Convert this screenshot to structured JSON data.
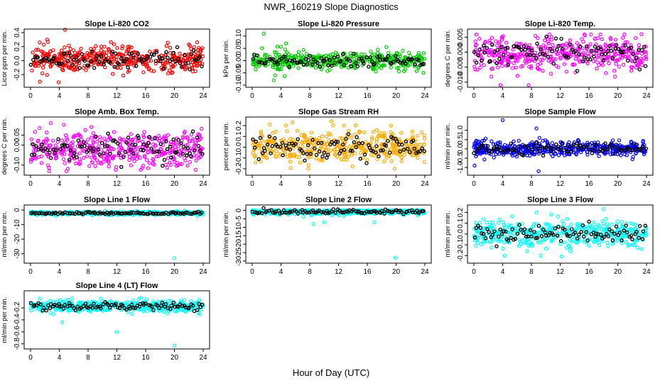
{
  "page": {
    "title": "NWR_160219  Slope Diagnostics",
    "xlabel": "Hour of Day (UTC)"
  },
  "chart_data": [
    {
      "type": "scatter",
      "title": "Slope Li-820 CO2",
      "ylabel": "Licor ppm per min.",
      "xlim": [
        0,
        24
      ],
      "xticks": [
        0,
        4,
        8,
        12,
        16,
        20,
        24
      ],
      "ylim": [
        -0.35,
        0.42
      ],
      "yticks": [
        -0.2,
        0.0,
        0.2,
        0.4
      ],
      "ytick_labels": [
        "-0.2",
        "0.0",
        "0.2",
        "0.4"
      ],
      "color": "#ff0000",
      "center": 0.02,
      "spread": 0.09,
      "outliers_high": [
        [
          2.3,
          0.3
        ],
        [
          4.8,
          0.44
        ]
      ],
      "outliers_low": [
        [
          1.3,
          -0.3
        ],
        [
          3.9,
          -0.31
        ]
      ]
    },
    {
      "type": "scatter",
      "title": "Slope Li-820 Pressure",
      "ylabel": "kPa per min.",
      "xlim": [
        0,
        24
      ],
      "xticks": [
        0,
        4,
        8,
        12,
        16,
        20,
        24
      ],
      "ylim": [
        -0.1,
        0.12
      ],
      "yticks": [
        -0.1,
        -0.05,
        0.0,
        0.05,
        0.1
      ],
      "ytick_labels": [
        "-0.10",
        "-0.05",
        "0.00",
        "0.05",
        "0.10"
      ],
      "color": "#00cc00",
      "center": 0.0,
      "spread": 0.018,
      "outliers_high": [
        [
          1.6,
          0.11
        ],
        [
          4.7,
          0.07
        ]
      ],
      "outliers_low": [
        [
          3.0,
          -0.08
        ],
        [
          23.8,
          -0.05
        ]
      ]
    },
    {
      "type": "scatter",
      "title": "Slope Li-820 Temp.",
      "ylabel": "degrees C per min.",
      "xlim": [
        0,
        24
      ],
      "xticks": [
        0,
        4,
        8,
        12,
        16,
        20,
        24
      ],
      "ylim": [
        -0.011,
        0.007
      ],
      "yticks": [
        -0.01,
        -0.005,
        0.0,
        0.005
      ],
      "ytick_labels": [
        "-0.010",
        "-0.005",
        "0.000",
        "0.005"
      ],
      "color": "#ff00ff",
      "center": -0.0005,
      "spread": 0.0028,
      "outliers_high": [
        [
          23.3,
          0.006
        ]
      ],
      "outliers_low": [
        [
          3.7,
          -0.011
        ],
        [
          7.6,
          -0.011
        ]
      ]
    },
    {
      "type": "scatter",
      "title": "Slope Amb. Box Temp.",
      "ylabel": "degrees C per min.",
      "xlim": [
        0,
        24
      ],
      "xticks": [
        0,
        4,
        8,
        12,
        16,
        20,
        24
      ],
      "ylim": [
        -0.14,
        0.13
      ],
      "yticks": [
        -0.1,
        0.0,
        0.05
      ],
      "ytick_labels": [
        "-0.10",
        "0.00",
        "0.05"
      ],
      "color": "#ff00ff",
      "center": -0.02,
      "spread": 0.045,
      "outliers_high": [
        [
          2.8,
          0.11
        ]
      ],
      "outliers_low": [
        [
          2.6,
          -0.13
        ],
        [
          5.0,
          -0.13
        ]
      ]
    },
    {
      "type": "scatter",
      "title": "Slope Gas Stream RH",
      "ylabel": "percent per min.",
      "xlim": [
        0,
        24
      ],
      "xticks": [
        0,
        4,
        8,
        12,
        16,
        20,
        24
      ],
      "ylim": [
        -0.24,
        0.26
      ],
      "yticks": [
        -0.2,
        -0.1,
        0.0,
        0.1,
        0.2
      ],
      "ytick_labels": [
        "-0.2",
        "-0.1",
        "0.0",
        "0.1",
        "0.2"
      ],
      "color": "#ffaa00",
      "center": 0.0,
      "spread": 0.07,
      "outliers_high": [
        [
          11.0,
          0.24
        ]
      ],
      "outliers_low": [
        [
          7.8,
          -0.2
        ],
        [
          19.8,
          -0.2
        ]
      ]
    },
    {
      "type": "scatter",
      "title": "Slope Sample Flow",
      "ylabel": "ml/min per min.",
      "xlim": [
        0,
        24
      ],
      "xticks": [
        0,
        4,
        8,
        12,
        16,
        20,
        24
      ],
      "ylim": [
        -1.3,
        1.6
      ],
      "yticks": [
        -1.0,
        -0.5,
        0.0,
        0.5,
        1.0
      ],
      "ytick_labels": [
        "-1.0",
        "-0.5",
        "0.0",
        "0.5",
        "1.0"
      ],
      "color": "#0000ff",
      "center": 0.0,
      "spread": 0.2,
      "outliers_high": [
        [
          4.0,
          1.55
        ],
        [
          8.7,
          1.1
        ]
      ],
      "outliers_low": [
        [
          9.0,
          -1.2
        ],
        [
          0.1,
          -0.9
        ]
      ]
    },
    {
      "type": "scatter",
      "title": "Slope Line 1 Flow",
      "ylabel": "ml/min per min.",
      "xlim": [
        0,
        24
      ],
      "xticks": [
        0,
        4,
        8,
        12,
        16,
        20,
        24
      ],
      "ylim": [
        -35,
        2
      ],
      "yticks": [
        -30,
        -20,
        -10,
        0
      ],
      "ytick_labels": [
        "-30",
        "-20",
        "-10",
        "0"
      ],
      "color": "#00ffff",
      "center": -2.2,
      "spread": 0.6,
      "outliers_high": [],
      "outliers_low": [
        [
          20.0,
          -33
        ],
        [
          23.2,
          -4
        ]
      ]
    },
    {
      "type": "scatter",
      "title": "Slope Line 2 Flow",
      "ylabel": "ml/min per min.",
      "xlim": [
        0,
        24
      ],
      "xticks": [
        0,
        4,
        8,
        12,
        16,
        20,
        24
      ],
      "ylim": [
        -30,
        2
      ],
      "yticks": [
        -30,
        -25,
        -20,
        -15,
        -10,
        -5,
        0
      ],
      "ytick_labels": [
        "-30",
        "-25",
        "-20",
        "-15",
        "-10",
        "-5",
        "0"
      ],
      "color": "#00ffff",
      "center": -0.8,
      "spread": 0.8,
      "outliers_high": [],
      "outliers_low": [
        [
          19.9,
          -28
        ],
        [
          8.5,
          -8
        ],
        [
          10.0,
          -7
        ],
        [
          17.0,
          -7
        ]
      ]
    },
    {
      "type": "scatter",
      "title": "Slope Line 3 Flow",
      "ylabel": "ml/min per min.",
      "xlim": [
        0,
        24
      ],
      "xticks": [
        0,
        4,
        8,
        12,
        16,
        20,
        24
      ],
      "ylim": [
        -0.25,
        0.25
      ],
      "yticks": [
        -0.2,
        -0.1,
        0.0,
        0.1,
        0.2
      ],
      "ytick_labels": [
        "-0.2",
        "-0.1",
        "0.0",
        "0.1",
        "0.2"
      ],
      "color": "#00ffff",
      "center": 0.0,
      "spread": 0.06,
      "outliers_high": [
        [
          8.7,
          0.2
        ],
        [
          18.0,
          0.23
        ]
      ],
      "outliers_low": [
        [
          4.3,
          -0.2
        ],
        [
          9.3,
          -0.2
        ]
      ]
    },
    {
      "type": "scatter",
      "title": "Slope Line 4 (LT) Flow",
      "ylabel": "ml/min per min.",
      "xlim": [
        0,
        24
      ],
      "xticks": [
        0,
        4,
        8,
        12,
        16,
        20,
        24
      ],
      "ylim": [
        -0.85,
        0.05
      ],
      "yticks": [
        -0.8,
        -0.6,
        -0.4,
        -0.2
      ],
      "ytick_labels": [
        "-0.8",
        "-0.6",
        "-0.4",
        "-0.2"
      ],
      "color": "#00ffff",
      "center": -0.17,
      "spread": 0.05,
      "outliers_high": [],
      "outliers_low": [
        [
          20.0,
          -0.83
        ],
        [
          12.0,
          -0.6
        ],
        [
          4.4,
          -0.44
        ]
      ]
    }
  ]
}
